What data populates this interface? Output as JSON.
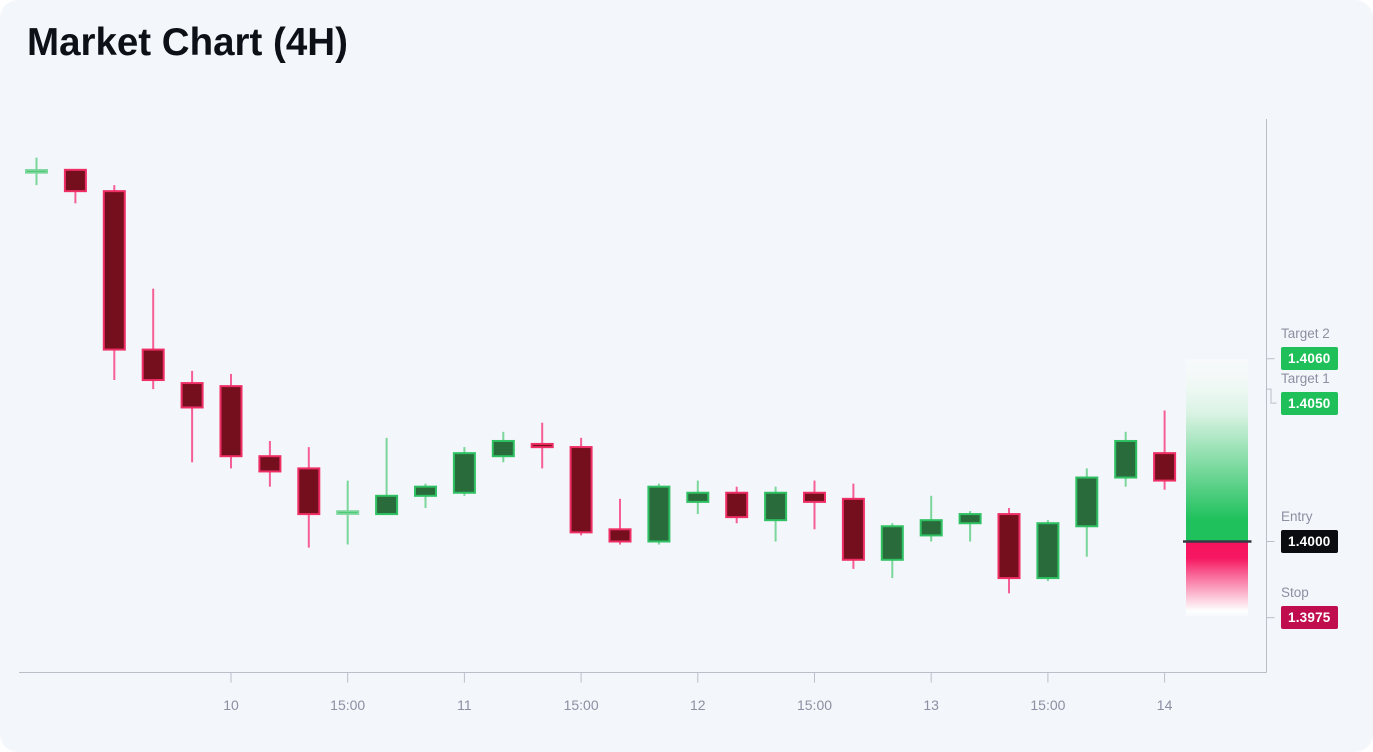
{
  "title": "Market Chart (4H)",
  "chart_data": {
    "type": "candlestick",
    "timeframe": "4H",
    "ylim": [
      1.3957,
      1.414
    ],
    "colors": {
      "background": "#f3f6fa",
      "up_stroke": "#2fc163",
      "up_fill": "#2a6b3c",
      "up_wick": "#7bd69b",
      "down_stroke": "#ee2e64",
      "down_fill": "#750e1d",
      "down_wick": "#f65f95",
      "axis": "#b9bfc9",
      "entry_line": "#353a45",
      "zone_green": "#1fc15c",
      "zone_red": "#f6125e"
    },
    "x_ticks": [
      {
        "label": "10",
        "candle": 5
      },
      {
        "label": "15:00",
        "candle": 8
      },
      {
        "label": "11",
        "candle": 11
      },
      {
        "label": "15:00",
        "candle": 14
      },
      {
        "label": "12",
        "candle": 17
      },
      {
        "label": "15:00",
        "candle": 20
      },
      {
        "label": "13",
        "candle": 23
      },
      {
        "label": "15:00",
        "candle": 26
      },
      {
        "label": "14",
        "candle": 29
      }
    ],
    "levels": [
      {
        "id": "target2",
        "label": "Target 2",
        "price": 1.406,
        "value_text": "1.4060",
        "badge_color": "#1fc05a"
      },
      {
        "id": "target1",
        "label": "Target 1",
        "price": 1.405,
        "value_text": "1.4050",
        "badge_color": "#1fc05a"
      },
      {
        "id": "entry",
        "label": "Entry",
        "price": 1.4,
        "value_text": "1.4000",
        "badge_color": "#0b0c10"
      },
      {
        "id": "stop",
        "label": "Stop",
        "price": 1.3975,
        "value_text": "1.3975",
        "badge_color": "#bf0d4e"
      }
    ],
    "candles": [
      {
        "o": 1.4121,
        "h": 1.4126,
        "l": 1.4117,
        "c": 1.4122
      },
      {
        "o": 1.4122,
        "h": 1.4122,
        "l": 1.4111,
        "c": 1.4115
      },
      {
        "o": 1.4115,
        "h": 1.4117,
        "l": 1.4053,
        "c": 1.4063
      },
      {
        "o": 1.4063,
        "h": 1.4083,
        "l": 1.405,
        "c": 1.4053
      },
      {
        "o": 1.4052,
        "h": 1.4056,
        "l": 1.4026,
        "c": 1.4044
      },
      {
        "o": 1.4051,
        "h": 1.4055,
        "l": 1.4024,
        "c": 1.4028
      },
      {
        "o": 1.4028,
        "h": 1.4033,
        "l": 1.4018,
        "c": 1.4023
      },
      {
        "o": 1.4024,
        "h": 1.4031,
        "l": 1.3998,
        "c": 1.4009
      },
      {
        "o": 1.4009,
        "h": 1.402,
        "l": 1.3999,
        "c": 1.401
      },
      {
        "o": 1.4009,
        "h": 1.4034,
        "l": 1.4009,
        "c": 1.4015
      },
      {
        "o": 1.4015,
        "h": 1.4019,
        "l": 1.4011,
        "c": 1.4018
      },
      {
        "o": 1.4016,
        "h": 1.4031,
        "l": 1.4015,
        "c": 1.4029
      },
      {
        "o": 1.4028,
        "h": 1.4036,
        "l": 1.4026,
        "c": 1.4033
      },
      {
        "o": 1.4032,
        "h": 1.4039,
        "l": 1.4024,
        "c": 1.4031
      },
      {
        "o": 1.4031,
        "h": 1.4034,
        "l": 1.4002,
        "c": 1.4003
      },
      {
        "o": 1.4004,
        "h": 1.4014,
        "l": 1.3999,
        "c": 1.4
      },
      {
        "o": 1.4,
        "h": 1.4019,
        "l": 1.3999,
        "c": 1.4018
      },
      {
        "o": 1.4013,
        "h": 1.402,
        "l": 1.4009,
        "c": 1.4016
      },
      {
        "o": 1.4016,
        "h": 1.4018,
        "l": 1.4006,
        "c": 1.4008
      },
      {
        "o": 1.4007,
        "h": 1.4018,
        "l": 1.4,
        "c": 1.4016
      },
      {
        "o": 1.4016,
        "h": 1.402,
        "l": 1.4004,
        "c": 1.4013
      },
      {
        "o": 1.4014,
        "h": 1.4019,
        "l": 1.3991,
        "c": 1.3994
      },
      {
        "o": 1.3994,
        "h": 1.4006,
        "l": 1.3988,
        "c": 1.4005
      },
      {
        "o": 1.4002,
        "h": 1.4015,
        "l": 1.4,
        "c": 1.4007
      },
      {
        "o": 1.4006,
        "h": 1.401,
        "l": 1.4,
        "c": 1.4009
      },
      {
        "o": 1.4009,
        "h": 1.4011,
        "l": 1.3983,
        "c": 1.3988
      },
      {
        "o": 1.3988,
        "h": 1.4007,
        "l": 1.3987,
        "c": 1.4006
      },
      {
        "o": 1.4005,
        "h": 1.4024,
        "l": 1.3995,
        "c": 1.4021
      },
      {
        "o": 1.4021,
        "h": 1.4036,
        "l": 1.4018,
        "c": 1.4033
      },
      {
        "o": 1.4029,
        "h": 1.4043,
        "l": 1.4017,
        "c": 1.402
      }
    ]
  }
}
